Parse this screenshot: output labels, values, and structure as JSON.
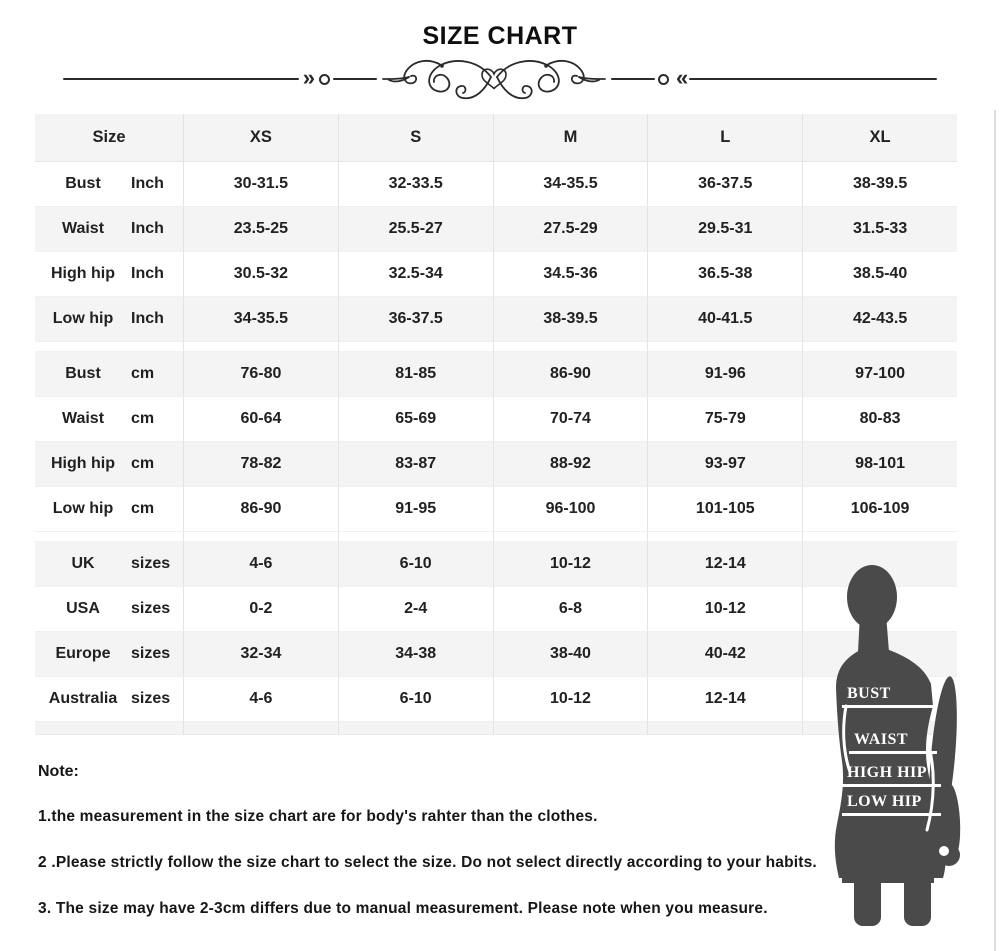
{
  "title": "SIZE CHART",
  "colors": {
    "row_shade": "#f4f4f4",
    "silhouette": "#4a4a4a",
    "line": "#2b2b2b"
  },
  "ornament": {
    "chevron_right": "»",
    "chevron_left": "«"
  },
  "table": {
    "header": [
      "Size",
      "XS",
      "S",
      "M",
      "L",
      "XL"
    ],
    "sections": [
      {
        "rows": [
          {
            "name": "Bust",
            "unit": "Inch",
            "values": [
              "30-31.5",
              "32-33.5",
              "34-35.5",
              "36-37.5",
              "38-39.5"
            ]
          },
          {
            "name": "Waist",
            "unit": "Inch",
            "values": [
              "23.5-25",
              "25.5-27",
              "27.5-29",
              "29.5-31",
              "31.5-33"
            ]
          },
          {
            "name": "High hip",
            "unit": "Inch",
            "values": [
              "30.5-32",
              "32.5-34",
              "34.5-36",
              "36.5-38",
              "38.5-40"
            ]
          },
          {
            "name": "Low hip",
            "unit": "Inch",
            "values": [
              "34-35.5",
              "36-37.5",
              "38-39.5",
              "40-41.5",
              "42-43.5"
            ]
          }
        ]
      },
      {
        "rows": [
          {
            "name": "Bust",
            "unit": "cm",
            "values": [
              "76-80",
              "81-85",
              "86-90",
              "91-96",
              "97-100"
            ]
          },
          {
            "name": "Waist",
            "unit": "cm",
            "values": [
              "60-64",
              "65-69",
              "70-74",
              "75-79",
              "80-83"
            ]
          },
          {
            "name": "High hip",
            "unit": "cm",
            "values": [
              "78-82",
              "83-87",
              "88-92",
              "93-97",
              "98-101"
            ]
          },
          {
            "name": "Low hip",
            "unit": "cm",
            "values": [
              "86-90",
              "91-95",
              "96-100",
              "101-105",
              "106-109"
            ]
          }
        ]
      },
      {
        "rows": [
          {
            "name": "UK",
            "unit": "sizes",
            "values": [
              "4-6",
              "6-10",
              "10-12",
              "12-14",
              ""
            ]
          },
          {
            "name": "USA",
            "unit": "sizes",
            "values": [
              "0-2",
              "2-4",
              "6-8",
              "10-12",
              ""
            ]
          },
          {
            "name": "Europe",
            "unit": "sizes",
            "values": [
              "32-34",
              "34-38",
              "38-40",
              "40-42",
              ""
            ]
          },
          {
            "name": "Australia",
            "unit": "sizes",
            "values": [
              "4-6",
              "6-10",
              "10-12",
              "12-14",
              ""
            ]
          }
        ]
      }
    ]
  },
  "figure": {
    "labels": [
      "BUST",
      "WAIST",
      "HIGH HIP",
      "LOW HIP"
    ]
  },
  "notes": {
    "heading": "Note:",
    "items": [
      "1.the measurement in the size chart are for body's rahter than the clothes.",
      "2 .Please strictly follow the size chart  to select the size. Do not select directly according to your habits.",
      "3. The size may have 2-3cm differs due to manual measurement. Please note when you measure."
    ]
  }
}
